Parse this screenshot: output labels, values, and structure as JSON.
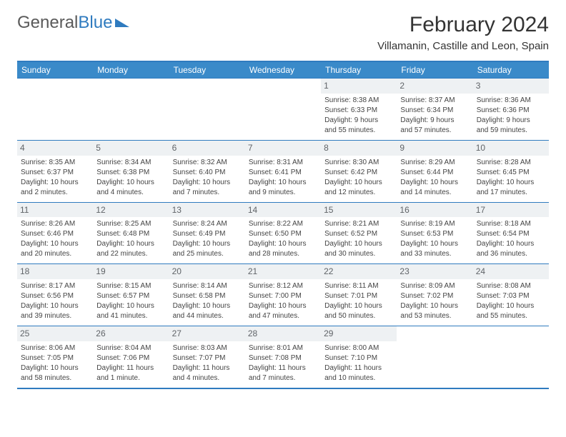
{
  "logo": {
    "text1": "General",
    "text2": "Blue"
  },
  "title": "February 2024",
  "location": "Villamanin, Castille and Leon, Spain",
  "dayHeaders": [
    "Sunday",
    "Monday",
    "Tuesday",
    "Wednesday",
    "Thursday",
    "Friday",
    "Saturday"
  ],
  "colors": {
    "headerBg": "#3a8ac9",
    "border": "#2f7bbf",
    "daynumBg": "#eef1f3"
  },
  "weeks": [
    [
      {
        "n": "",
        "sr": "",
        "ss": "",
        "dl1": "",
        "dl2": ""
      },
      {
        "n": "",
        "sr": "",
        "ss": "",
        "dl1": "",
        "dl2": ""
      },
      {
        "n": "",
        "sr": "",
        "ss": "",
        "dl1": "",
        "dl2": ""
      },
      {
        "n": "",
        "sr": "",
        "ss": "",
        "dl1": "",
        "dl2": ""
      },
      {
        "n": "1",
        "sr": "Sunrise: 8:38 AM",
        "ss": "Sunset: 6:33 PM",
        "dl1": "Daylight: 9 hours",
        "dl2": "and 55 minutes."
      },
      {
        "n": "2",
        "sr": "Sunrise: 8:37 AM",
        "ss": "Sunset: 6:34 PM",
        "dl1": "Daylight: 9 hours",
        "dl2": "and 57 minutes."
      },
      {
        "n": "3",
        "sr": "Sunrise: 8:36 AM",
        "ss": "Sunset: 6:36 PM",
        "dl1": "Daylight: 9 hours",
        "dl2": "and 59 minutes."
      }
    ],
    [
      {
        "n": "4",
        "sr": "Sunrise: 8:35 AM",
        "ss": "Sunset: 6:37 PM",
        "dl1": "Daylight: 10 hours",
        "dl2": "and 2 minutes."
      },
      {
        "n": "5",
        "sr": "Sunrise: 8:34 AM",
        "ss": "Sunset: 6:38 PM",
        "dl1": "Daylight: 10 hours",
        "dl2": "and 4 minutes."
      },
      {
        "n": "6",
        "sr": "Sunrise: 8:32 AM",
        "ss": "Sunset: 6:40 PM",
        "dl1": "Daylight: 10 hours",
        "dl2": "and 7 minutes."
      },
      {
        "n": "7",
        "sr": "Sunrise: 8:31 AM",
        "ss": "Sunset: 6:41 PM",
        "dl1": "Daylight: 10 hours",
        "dl2": "and 9 minutes."
      },
      {
        "n": "8",
        "sr": "Sunrise: 8:30 AM",
        "ss": "Sunset: 6:42 PM",
        "dl1": "Daylight: 10 hours",
        "dl2": "and 12 minutes."
      },
      {
        "n": "9",
        "sr": "Sunrise: 8:29 AM",
        "ss": "Sunset: 6:44 PM",
        "dl1": "Daylight: 10 hours",
        "dl2": "and 14 minutes."
      },
      {
        "n": "10",
        "sr": "Sunrise: 8:28 AM",
        "ss": "Sunset: 6:45 PM",
        "dl1": "Daylight: 10 hours",
        "dl2": "and 17 minutes."
      }
    ],
    [
      {
        "n": "11",
        "sr": "Sunrise: 8:26 AM",
        "ss": "Sunset: 6:46 PM",
        "dl1": "Daylight: 10 hours",
        "dl2": "and 20 minutes."
      },
      {
        "n": "12",
        "sr": "Sunrise: 8:25 AM",
        "ss": "Sunset: 6:48 PM",
        "dl1": "Daylight: 10 hours",
        "dl2": "and 22 minutes."
      },
      {
        "n": "13",
        "sr": "Sunrise: 8:24 AM",
        "ss": "Sunset: 6:49 PM",
        "dl1": "Daylight: 10 hours",
        "dl2": "and 25 minutes."
      },
      {
        "n": "14",
        "sr": "Sunrise: 8:22 AM",
        "ss": "Sunset: 6:50 PM",
        "dl1": "Daylight: 10 hours",
        "dl2": "and 28 minutes."
      },
      {
        "n": "15",
        "sr": "Sunrise: 8:21 AM",
        "ss": "Sunset: 6:52 PM",
        "dl1": "Daylight: 10 hours",
        "dl2": "and 30 minutes."
      },
      {
        "n": "16",
        "sr": "Sunrise: 8:19 AM",
        "ss": "Sunset: 6:53 PM",
        "dl1": "Daylight: 10 hours",
        "dl2": "and 33 minutes."
      },
      {
        "n": "17",
        "sr": "Sunrise: 8:18 AM",
        "ss": "Sunset: 6:54 PM",
        "dl1": "Daylight: 10 hours",
        "dl2": "and 36 minutes."
      }
    ],
    [
      {
        "n": "18",
        "sr": "Sunrise: 8:17 AM",
        "ss": "Sunset: 6:56 PM",
        "dl1": "Daylight: 10 hours",
        "dl2": "and 39 minutes."
      },
      {
        "n": "19",
        "sr": "Sunrise: 8:15 AM",
        "ss": "Sunset: 6:57 PM",
        "dl1": "Daylight: 10 hours",
        "dl2": "and 41 minutes."
      },
      {
        "n": "20",
        "sr": "Sunrise: 8:14 AM",
        "ss": "Sunset: 6:58 PM",
        "dl1": "Daylight: 10 hours",
        "dl2": "and 44 minutes."
      },
      {
        "n": "21",
        "sr": "Sunrise: 8:12 AM",
        "ss": "Sunset: 7:00 PM",
        "dl1": "Daylight: 10 hours",
        "dl2": "and 47 minutes."
      },
      {
        "n": "22",
        "sr": "Sunrise: 8:11 AM",
        "ss": "Sunset: 7:01 PM",
        "dl1": "Daylight: 10 hours",
        "dl2": "and 50 minutes."
      },
      {
        "n": "23",
        "sr": "Sunrise: 8:09 AM",
        "ss": "Sunset: 7:02 PM",
        "dl1": "Daylight: 10 hours",
        "dl2": "and 53 minutes."
      },
      {
        "n": "24",
        "sr": "Sunrise: 8:08 AM",
        "ss": "Sunset: 7:03 PM",
        "dl1": "Daylight: 10 hours",
        "dl2": "and 55 minutes."
      }
    ],
    [
      {
        "n": "25",
        "sr": "Sunrise: 8:06 AM",
        "ss": "Sunset: 7:05 PM",
        "dl1": "Daylight: 10 hours",
        "dl2": "and 58 minutes."
      },
      {
        "n": "26",
        "sr": "Sunrise: 8:04 AM",
        "ss": "Sunset: 7:06 PM",
        "dl1": "Daylight: 11 hours",
        "dl2": "and 1 minute."
      },
      {
        "n": "27",
        "sr": "Sunrise: 8:03 AM",
        "ss": "Sunset: 7:07 PM",
        "dl1": "Daylight: 11 hours",
        "dl2": "and 4 minutes."
      },
      {
        "n": "28",
        "sr": "Sunrise: 8:01 AM",
        "ss": "Sunset: 7:08 PM",
        "dl1": "Daylight: 11 hours",
        "dl2": "and 7 minutes."
      },
      {
        "n": "29",
        "sr": "Sunrise: 8:00 AM",
        "ss": "Sunset: 7:10 PM",
        "dl1": "Daylight: 11 hours",
        "dl2": "and 10 minutes."
      },
      {
        "n": "",
        "sr": "",
        "ss": "",
        "dl1": "",
        "dl2": ""
      },
      {
        "n": "",
        "sr": "",
        "ss": "",
        "dl1": "",
        "dl2": ""
      }
    ]
  ]
}
